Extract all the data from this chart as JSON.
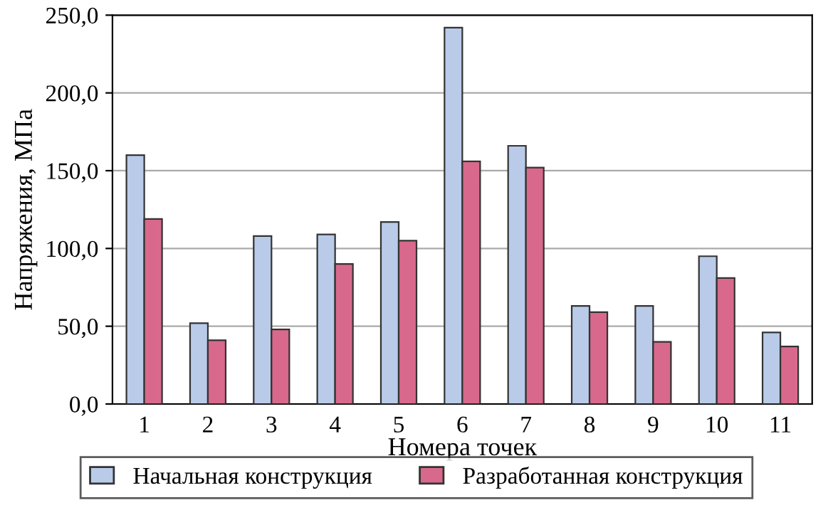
{
  "chart_data": {
    "type": "bar",
    "xlabel": "Номера точек",
    "ylabel": "Напряжения, МПа",
    "categories": [
      "1",
      "2",
      "3",
      "4",
      "5",
      "6",
      "7",
      "8",
      "9",
      "10",
      "11"
    ],
    "series": [
      {
        "name": "Начальная конструкция",
        "color": "#b9cbe9",
        "values": [
          160,
          52,
          108,
          109,
          117,
          242,
          166,
          63,
          63,
          95,
          46
        ]
      },
      {
        "name": "Разработанная конструкция",
        "color": "#d8698c",
        "values": [
          119,
          41,
          48,
          90,
          105,
          156,
          152,
          59,
          40,
          81,
          37
        ]
      }
    ],
    "ylim": [
      0,
      250
    ],
    "yticks": [
      {
        "value": 0,
        "label": "0,0"
      },
      {
        "value": 50,
        "label": "50,0"
      },
      {
        "value": 100,
        "label": "100,0"
      },
      {
        "value": 150,
        "label": "150,0"
      },
      {
        "value": 200,
        "label": "200,0"
      },
      {
        "value": 250,
        "label": "250,0"
      }
    ],
    "grid": "y",
    "legend": "bottom"
  }
}
